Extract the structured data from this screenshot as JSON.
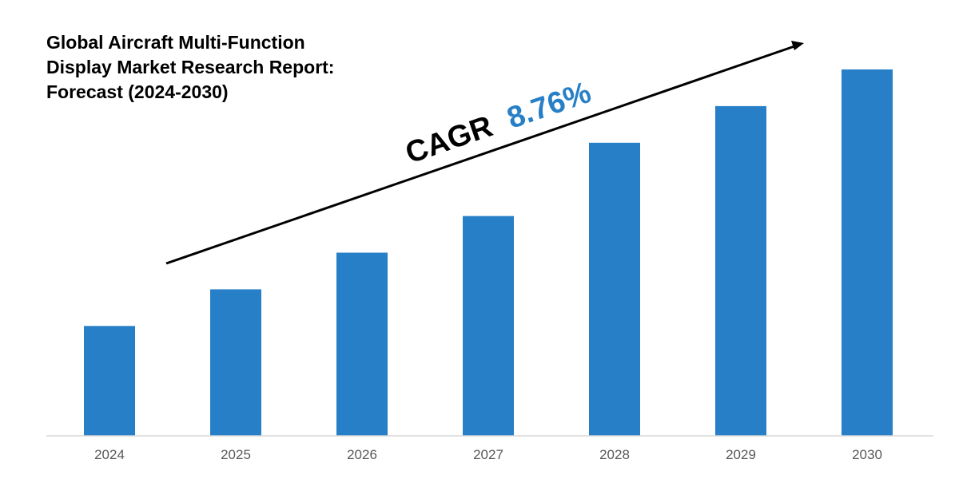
{
  "title_lines": [
    "Global Aircraft Multi-Function",
    "Display Market Research Report:",
    "Forecast (2024-2030)"
  ],
  "cagr": {
    "label": "CAGR",
    "value": "8.76%"
  },
  "colors": {
    "bar": "#2780C7",
    "cagr_value": "#2780C7",
    "text": "#000000",
    "tick": "#595959",
    "axis": "#d9d9d9"
  },
  "chart_data": {
    "type": "bar",
    "title": "Global Aircraft Multi-Function Display Market Research Report: Forecast (2024-2030)",
    "categories": [
      "2024",
      "2025",
      "2026",
      "2027",
      "2028",
      "2029",
      "2030"
    ],
    "values": [
      30,
      40,
      50,
      60,
      80,
      90,
      100
    ],
    "ylim": [
      0,
      100
    ],
    "grid": false,
    "annotations": [
      "CAGR 8.76%"
    ],
    "xlabel": "",
    "ylabel": ""
  }
}
